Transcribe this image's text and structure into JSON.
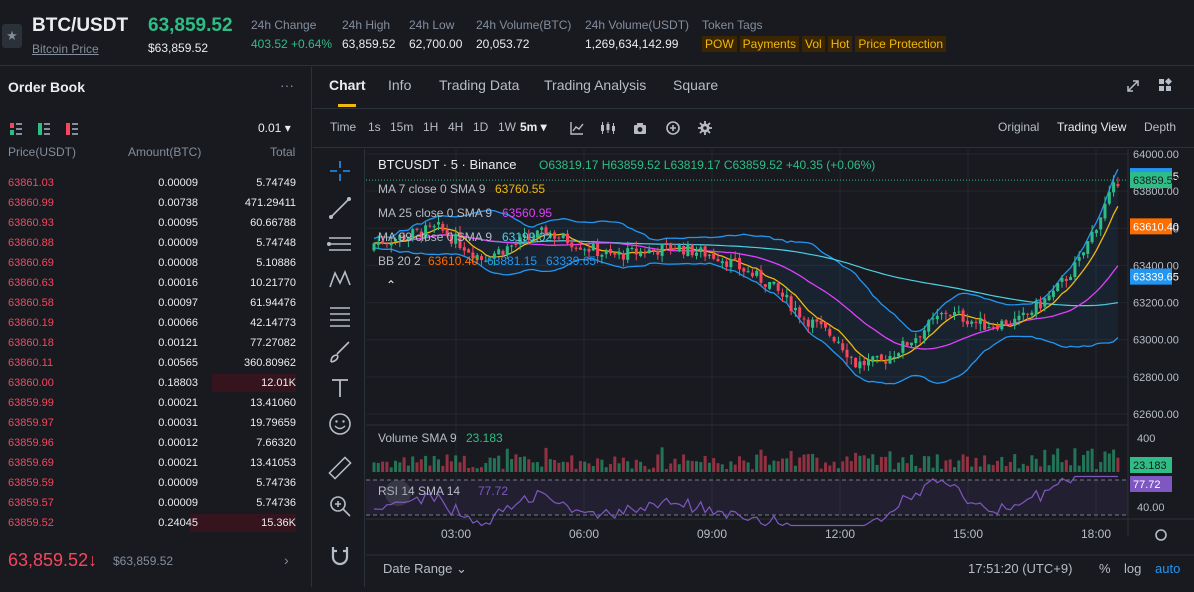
{
  "header": {
    "pair": "BTC/USDT",
    "pair_subtitle": "Bitcoin Price",
    "last_price": "63,859.52",
    "last_price_usd": "$63,859.52",
    "stats": [
      {
        "label": "24h Change",
        "value": "403.52 +0.64%"
      },
      {
        "label": "24h High",
        "value": "63,859.52"
      },
      {
        "label": "24h Low",
        "value": "62,700.00"
      },
      {
        "label": "24h Volume(BTC)",
        "value": "20,053.72"
      },
      {
        "label": "24h Volume(USDT)",
        "value": "1,269,634,142.99"
      }
    ],
    "token_tags_label": "Token Tags",
    "tags": [
      "POW",
      "Payments",
      "Vol",
      "Hot",
      "Price Protection"
    ]
  },
  "order_book": {
    "title": "Order Book",
    "more": "···",
    "step": "0.01 ▾",
    "col_price": "Price(USDT)",
    "col_amount": "Amount(BTC)",
    "col_total": "Total",
    "asks": [
      {
        "price": "63861.03",
        "amount": "0.00009",
        "total": "5.74749",
        "depth": 0
      },
      {
        "price": "63860.99",
        "amount": "0.00738",
        "total": "471.29411",
        "depth": 0
      },
      {
        "price": "63860.93",
        "amount": "0.00095",
        "total": "60.66788",
        "depth": 0
      },
      {
        "price": "63860.88",
        "amount": "0.00009",
        "total": "5.74748",
        "depth": 0
      },
      {
        "price": "63860.69",
        "amount": "0.00008",
        "total": "5.10886",
        "depth": 0
      },
      {
        "price": "63860.63",
        "amount": "0.00016",
        "total": "10.21770",
        "depth": 0
      },
      {
        "price": "63860.58",
        "amount": "0.00097",
        "total": "61.94476",
        "depth": 0
      },
      {
        "price": "63860.19",
        "amount": "0.00066",
        "total": "42.14773",
        "depth": 0
      },
      {
        "price": "63860.18",
        "amount": "0.00121",
        "total": "77.27082",
        "depth": 0
      },
      {
        "price": "63860.11",
        "amount": "0.00565",
        "total": "360.80962",
        "depth": 0
      },
      {
        "price": "63860.00",
        "amount": "0.18803",
        "total": "12.01K",
        "depth": 0.3
      },
      {
        "price": "63859.99",
        "amount": "0.00021",
        "total": "13.41060",
        "depth": 0
      },
      {
        "price": "63859.97",
        "amount": "0.00031",
        "total": "19.79659",
        "depth": 0
      },
      {
        "price": "63859.96",
        "amount": "0.00012",
        "total": "7.66320",
        "depth": 0
      },
      {
        "price": "63859.69",
        "amount": "0.00021",
        "total": "13.41053",
        "depth": 0
      },
      {
        "price": "63859.59",
        "amount": "0.00009",
        "total": "5.74736",
        "depth": 0
      },
      {
        "price": "63859.57",
        "amount": "0.00009",
        "total": "5.74736",
        "depth": 0
      },
      {
        "price": "63859.52",
        "amount": "0.24045",
        "total": "15.36K",
        "depth": 0.38
      }
    ],
    "last_price": "63,859.52",
    "last_arrow": "↓",
    "last_price_usd": "$63,859.52",
    "chevron": "›"
  },
  "tabs": [
    "Chart",
    "Info",
    "Trading Data",
    "Trading Analysis",
    "Square"
  ],
  "toolbar": {
    "time_label": "Time",
    "intervals": [
      "1s",
      "15m",
      "1H",
      "4H",
      "1D",
      "1W"
    ],
    "selected_interval": "5m ▾",
    "views": [
      "Original",
      "Trading View",
      "Depth"
    ]
  },
  "chart": {
    "legend_main": "BTCUSDT · 5 · Binance",
    "ohlc": "O63819.17 H63859.52 L63819.17 C63859.52 +40.35 (+0.06%)",
    "ma7_label": "MA 7 close 0 SMA 9",
    "ma7_value": "63760.55",
    "ma25_label": "MA 25 close 0 SMA 9",
    "ma25_value": "63560.95",
    "ma99_label": "MA 99 close 0 SMA 9",
    "ma99_value": "63199.02",
    "bb_label": "BB 20 2",
    "bb_basis": "63610.40",
    "bb_upper": "63881.15",
    "bb_lower": "63339.65",
    "price_ticks": [
      "64000.00",
      "63800.00",
      "63600.00",
      "63400.00",
      "63200.00",
      "63000.00",
      "62800.00",
      "62600.00"
    ],
    "badges": {
      "upper": "63881.15",
      "last": "63859.52",
      "basis": "63610.40",
      "lower": "63339.65"
    },
    "volume_label": "Volume SMA 9",
    "volume_value": "23.183",
    "volume_tick": "400",
    "volume_badge": "23.183",
    "rsi_label": "RSI 14 SMA 14",
    "rsi_value": "77.72",
    "rsi_badge": "77.72",
    "rsi_tick": "40.00",
    "time_ticks": [
      "03:00",
      "06:00",
      "09:00",
      "12:00",
      "15:00",
      "18:00"
    ],
    "date_range": "Date Range ⌄",
    "clock": "17:51:20 (UTC+9)",
    "pct": "%",
    "log": "log",
    "auto": "auto",
    "colors": {
      "up": "#2ebd85",
      "down": "#f6465d",
      "ma7": "#f0b90b",
      "ma25": "#e040fb",
      "ma99": "#4dd0e1",
      "bb": "#2196f3",
      "rsi": "#7e57c2"
    }
  }
}
